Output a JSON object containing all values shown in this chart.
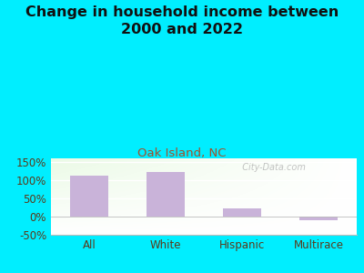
{
  "title": "Change in household income between\n2000 and 2022",
  "subtitle": "Oak Island, NC",
  "categories": [
    "All",
    "White",
    "Hispanic",
    "Multirace"
  ],
  "values": [
    113,
    122,
    22,
    -10
  ],
  "bar_color": "#c9b3d9",
  "title_fontsize": 11.5,
  "subtitle_fontsize": 9.5,
  "subtitle_color": "#a0522d",
  "tick_label_color": "#5a3a1a",
  "background_outer": "#00eeff",
  "background_inner": "#e8f5e0",
  "ylim": [
    -50,
    160
  ],
  "yticks": [
    -50,
    0,
    50,
    100,
    150
  ],
  "ytick_labels": [
    "-50%",
    "0%",
    "50%",
    "100%",
    "150%"
  ],
  "watermark": "  City-Data.com"
}
